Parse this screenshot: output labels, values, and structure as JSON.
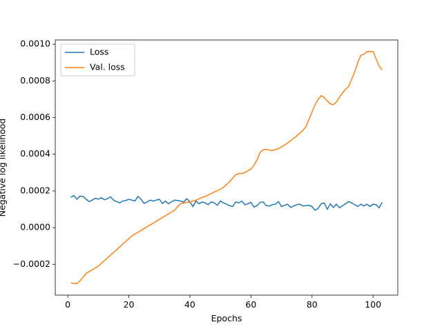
{
  "chart_data": {
    "type": "line",
    "xlabel": "Epochs",
    "ylabel": "Negative log likelihood",
    "x": [
      1,
      2,
      3,
      4,
      5,
      6,
      7,
      8,
      9,
      10,
      11,
      12,
      13,
      14,
      15,
      16,
      17,
      18,
      19,
      20,
      21,
      22,
      23,
      24,
      25,
      26,
      27,
      28,
      29,
      30,
      31,
      32,
      33,
      34,
      35,
      36,
      37,
      38,
      39,
      40,
      41,
      42,
      43,
      44,
      45,
      46,
      47,
      48,
      49,
      50,
      51,
      52,
      53,
      54,
      55,
      56,
      57,
      58,
      59,
      60,
      61,
      62,
      63,
      64,
      65,
      66,
      67,
      68,
      69,
      70,
      71,
      72,
      73,
      74,
      75,
      76,
      77,
      78,
      79,
      80,
      81,
      82,
      83,
      84,
      85,
      86,
      87,
      88,
      89,
      90,
      91,
      92,
      93,
      94,
      95,
      96,
      97,
      98,
      99,
      100,
      101,
      102,
      103
    ],
    "series": [
      {
        "name": "Loss",
        "color": "#1f77b4",
        "values": [
          0.000165,
          0.000175,
          0.000155,
          0.000172,
          0.00017,
          0.000155,
          0.000142,
          0.00015,
          0.00016,
          0.000155,
          0.000163,
          0.000152,
          0.000158,
          0.000168,
          0.00015,
          0.000142,
          0.000135,
          0.000145,
          0.000148,
          0.000155,
          0.00015,
          0.000145,
          0.00017,
          0.000155,
          0.000132,
          0.00014,
          0.00015,
          0.000145,
          0.00015,
          0.000155,
          0.000132,
          0.000145,
          0.00013,
          0.000142,
          0.00015,
          0.000148,
          0.000145,
          0.00014,
          0.000158,
          0.00014,
          0.000115,
          0.000145,
          0.00013,
          0.00014,
          0.000135,
          0.000125,
          0.00014,
          0.000135,
          0.000122,
          0.000145,
          0.000135,
          0.000128,
          0.00012,
          0.000115,
          0.00014,
          0.000135,
          0.000145,
          0.000125,
          0.00013,
          0.000138,
          0.000112,
          0.00012,
          0.000138,
          0.00014,
          0.00012,
          0.000118,
          0.000125,
          0.000128,
          0.000142,
          0.000115,
          0.000122,
          0.000128,
          0.00011,
          0.000118,
          0.000125,
          0.000128,
          0.000118,
          0.00012,
          0.000122,
          0.000115,
          9.5e-05,
          0.000105,
          0.00013,
          0.000135,
          0.0001,
          0.00013,
          0.00011,
          0.000128,
          0.000108,
          0.00012,
          0.00013,
          0.000142,
          0.000135,
          0.000125,
          0.000115,
          0.000128,
          0.000118,
          0.000128,
          0.000115,
          0.000128,
          0.000125,
          0.000108,
          0.000138
        ]
      },
      {
        "name": "Val. loss",
        "color": "#ff7f0e",
        "values": [
          -0.0003,
          -0.000305,
          -0.000305,
          -0.00029,
          -0.00027,
          -0.00025,
          -0.00024,
          -0.00023,
          -0.00022,
          -0.00021,
          -0.000195,
          -0.00018,
          -0.000165,
          -0.00015,
          -0.000135,
          -0.00012,
          -0.000105,
          -9e-05,
          -7.5e-05,
          -6e-05,
          -4.5e-05,
          -3.5e-05,
          -2.5e-05,
          -1.5e-05,
          -5e-06,
          5e-06,
          1.5e-05,
          2.5e-05,
          3.5e-05,
          4.5e-05,
          5.5e-05,
          6.5e-05,
          7.5e-05,
          8.5e-05,
          9.5e-05,
          0.000115,
          0.00013,
          0.000135,
          0.000138,
          0.00014,
          0.000145,
          0.00015,
          0.000157,
          0.000164,
          0.00017,
          0.000178,
          0.000186,
          0.000194,
          0.000202,
          0.00021,
          0.00022,
          0.000235,
          0.00025,
          0.00027,
          0.000288,
          0.000295,
          0.000295,
          0.0003,
          0.00031,
          0.00032,
          0.00034,
          0.00037,
          0.00041,
          0.000425,
          0.000427,
          0.000423,
          0.00042,
          0.000425,
          0.00043,
          0.00044,
          0.00045,
          0.000462,
          0.000474,
          0.000487,
          0.0005,
          0.000515,
          0.00053,
          0.00055,
          0.00059,
          0.00063,
          0.00067,
          0.0007,
          0.00072,
          0.00071,
          0.00069,
          0.000675,
          0.00067,
          0.000685,
          0.00071,
          0.000735,
          0.000755,
          0.00077,
          0.00081,
          0.00085,
          0.0009,
          0.00094,
          0.000945,
          0.00096,
          0.00096,
          0.00096,
          0.00092,
          0.00088,
          0.00086
        ]
      }
    ],
    "xlim": [
      -4.1,
      108.1
    ],
    "ylim": [
      -0.000368,
      0.001023
    ],
    "xticks": [
      0,
      20,
      40,
      60,
      80,
      100
    ],
    "yticks": [
      {
        "value": -0.0002,
        "label": "−0.0002"
      },
      {
        "value": 0,
        "label": "0.0000"
      },
      {
        "value": 0.0002,
        "label": "0.0002"
      },
      {
        "value": 0.0004,
        "label": "0.0004"
      },
      {
        "value": 0.0006,
        "label": "0.0006"
      },
      {
        "value": 0.0008,
        "label": "0.0008"
      },
      {
        "value": 0.001,
        "label": "0.0010"
      }
    ],
    "legend": "upper left"
  }
}
